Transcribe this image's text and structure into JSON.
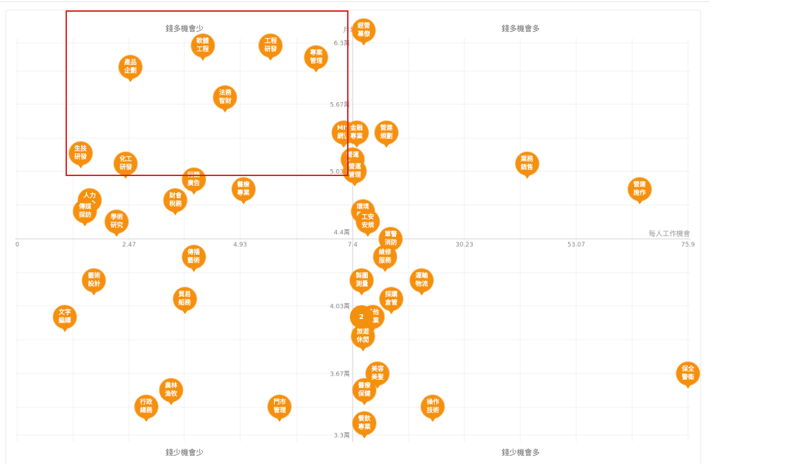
{
  "chart_data": {
    "type": "scatter",
    "xlabel": "每人工作機會",
    "ylabel": "月均薪",
    "x_ticks": [
      "0",
      "2.47",
      "4.93",
      "7.4",
      "30.23",
      "53.07",
      "75.9"
    ],
    "y_ticks": [
      "6.3萬",
      "5.67萬",
      "5.03萬",
      "4.4萬",
      "4.03萬",
      "3.67萬",
      "3.3萬"
    ],
    "quadrants": {
      "top_left": "錢多機會少",
      "top_right": "錢多機會多",
      "bottom_left": "錢少機會少",
      "bottom_right": "錢少機會多"
    },
    "grid": true,
    "points": [
      {
        "label": [
          "軟體",
          "工程"
        ],
        "x": 4.1,
        "y": 6.27
      },
      {
        "label": [
          "工程",
          "研發"
        ],
        "x": 5.6,
        "y": 6.27
      },
      {
        "label": [
          "經營",
          "幕僚"
        ],
        "x": 9.7,
        "y": 6.43
      },
      {
        "label": [
          "專案",
          "管理"
        ],
        "x": 6.6,
        "y": 6.15
      },
      {
        "label": [
          "產品",
          "企劃"
        ],
        "x": 2.5,
        "y": 6.05
      },
      {
        "label": [
          "法務",
          "智財"
        ],
        "x": 4.6,
        "y": 5.74
      },
      {
        "label": [
          "MIS",
          "網管"
        ],
        "x": 7.2,
        "y": 5.4
      },
      {
        "label": [
          "金融",
          "專業"
        ],
        "x": 8.2,
        "y": 5.4
      },
      {
        "label": [
          "營建",
          "規劃"
        ],
        "x": 14.3,
        "y": 5.4
      },
      {
        "label": [
          "生技",
          "研發"
        ],
        "x": 1.4,
        "y": 5.2
      },
      {
        "label": [
          "化工",
          "研發"
        ],
        "x": 2.4,
        "y": 5.1
      },
      {
        "label": [
          "營運",
          "管理"
        ],
        "x": 7.4,
        "y": 5.14
      },
      {
        "label": [
          "營運",
          "管理"
        ],
        "x": 7.85,
        "y": 5.03
      },
      {
        "label": [
          "業務",
          "銷售"
        ],
        "x": 43.0,
        "y": 5.1
      },
      {
        "label": [
          "行銷",
          "廣告"
        ],
        "x": 3.9,
        "y": 4.95
      },
      {
        "label": [
          "醫療",
          "專業"
        ],
        "x": 5.0,
        "y": 4.86
      },
      {
        "label": [
          "營建",
          "施作"
        ],
        "x": 66.0,
        "y": 4.86
      },
      {
        "label": [
          "人力",
          "仲介"
        ],
        "x": 1.6,
        "y": 4.76
      },
      {
        "label": [
          "財會",
          "稅務"
        ],
        "x": 3.5,
        "y": 4.76
      },
      {
        "label": [
          "傳媒",
          "採訪"
        ],
        "x": 1.5,
        "y": 4.66
      },
      {
        "label": [
          "學術",
          "研究"
        ],
        "x": 2.2,
        "y": 4.56
      },
      {
        "label": [
          "環境",
          "衛生"
        ],
        "x": 9.5,
        "y": 4.66
      },
      {
        "label": [
          "工安",
          "安規"
        ],
        "x": 10.5,
        "y": 4.56
      },
      {
        "label": [
          "軍警",
          "消防"
        ],
        "x": 15.2,
        "y": 4.4
      },
      {
        "label": [
          "傳播",
          "藝術"
        ],
        "x": 3.9,
        "y": 4.3
      },
      {
        "label": [
          "維修",
          "服務"
        ],
        "x": 14.0,
        "y": 4.3
      },
      {
        "label": [
          "藝術",
          "設計"
        ],
        "x": 1.7,
        "y": 4.17
      },
      {
        "label": [
          "製圖",
          "測量"
        ],
        "x": 9.3,
        "y": 4.17
      },
      {
        "label": [
          "運輸",
          "物流"
        ],
        "x": 21.5,
        "y": 4.17
      },
      {
        "label": [
          "貿易",
          "船務"
        ],
        "x": 3.7,
        "y": 4.07
      },
      {
        "label": [
          "採購",
          "倉管"
        ],
        "x": 15.3,
        "y": 4.07
      },
      {
        "label": [
          "文字",
          "編譯"
        ],
        "x": 1.05,
        "y": 3.97
      },
      {
        "label": [
          "其他",
          "專業"
        ],
        "x": 11.5,
        "y": 3.97
      },
      {
        "label": [
          "旅遊",
          "休閒"
        ],
        "x": 9.5,
        "y": 3.87
      },
      {
        "label": [
          "美容",
          "美髮"
        ],
        "x": 12.5,
        "y": 3.67
      },
      {
        "label": [
          "保全",
          "警衛"
        ],
        "x": 75.9,
        "y": 3.67
      },
      {
        "label": [
          "醫療",
          "保健"
        ],
        "x": 9.8,
        "y": 3.57
      },
      {
        "label": [
          "農林",
          "漁牧"
        ],
        "x": 3.4,
        "y": 3.57
      },
      {
        "label": [
          "行政",
          "總務"
        ],
        "x": 2.85,
        "y": 3.47
      },
      {
        "label": [
          "門市",
          "管理"
        ],
        "x": 5.8,
        "y": 3.47
      },
      {
        "label": [
          "操作",
          "技術"
        ],
        "x": 23.8,
        "y": 3.47
      },
      {
        "label": [
          "餐飲",
          "專業"
        ],
        "x": 9.8,
        "y": 3.37
      }
    ],
    "clusters": [
      {
        "count": "2",
        "x": 9.2,
        "y": 3.97
      }
    ]
  }
}
